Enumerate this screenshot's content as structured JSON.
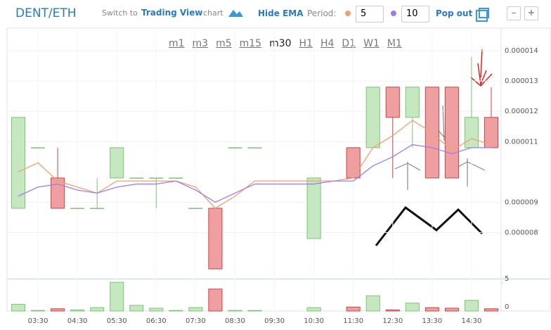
{
  "header": {
    "symbol": "DENT/ETH",
    "switch_text": "Switch to",
    "switch_link": "Trading View",
    "switch_suffix": "chart",
    "hide_ema": "Hide EMA",
    "period_label": "Period:",
    "period_1": "5",
    "period_2": "10",
    "pop_out": "Pop out",
    "zoom_out": "–",
    "zoom_in": "+"
  },
  "timeframes": {
    "items": [
      "m1",
      "m3",
      "m5",
      "m15",
      "m30",
      "H1",
      "H4",
      "D1",
      "W1",
      "M1"
    ],
    "selected": 4
  },
  "chart_data": {
    "type": "candlestick",
    "categories": [
      null,
      "03:30",
      null,
      "04:30",
      null,
      "05:30",
      null,
      "06:30",
      null,
      "07:30",
      null,
      "08:30",
      null,
      "09:30",
      null,
      "10:30",
      null,
      "11:30",
      null,
      "12:30",
      null,
      "13:30",
      null,
      "14:30",
      null
    ],
    "open": [
      8.8e-06,
      1.08e-05,
      9.8e-06,
      8.8e-06,
      8.8e-06,
      9.8e-06,
      9.8e-06,
      9.8e-06,
      9.8e-06,
      8.8e-06,
      8.8e-06,
      1.08e-05,
      1.08e-05,
      null,
      null,
      7.8e-06,
      null,
      1.08e-05,
      1.08e-05,
      1.28e-05,
      1.18e-05,
      1.28e-05,
      1.28e-05,
      1.08e-05,
      1.18e-05
    ],
    "high": [
      1.18e-05,
      1.08e-05,
      1.08e-05,
      8.8e-06,
      9.8e-06,
      1.08e-05,
      9.8e-06,
      9.8e-06,
      9.8e-06,
      8.8e-06,
      8.8e-06,
      1.08e-05,
      1.08e-05,
      null,
      null,
      9.8e-06,
      null,
      1.08e-05,
      1.28e-05,
      1.28e-05,
      1.28e-05,
      1.28e-05,
      1.28e-05,
      1.38e-05,
      1.28e-05
    ],
    "low": [
      8.8e-06,
      1.08e-05,
      8.8e-06,
      8.8e-06,
      8.8e-06,
      9.8e-06,
      9.8e-06,
      8.8e-06,
      9.8e-06,
      8.8e-06,
      6.8e-06,
      1.08e-05,
      1.08e-05,
      null,
      null,
      7.8e-06,
      null,
      9.8e-06,
      1.08e-05,
      9.8e-06,
      1.08e-05,
      9.8e-06,
      9.8e-06,
      1.08e-05,
      1.08e-05
    ],
    "close": [
      1.18e-05,
      1.08e-05,
      8.8e-06,
      8.8e-06,
      8.8e-06,
      1.08e-05,
      9.8e-06,
      9.8e-06,
      9.8e-06,
      8.8e-06,
      6.8e-06,
      1.08e-05,
      1.08e-05,
      null,
      null,
      9.8e-06,
      null,
      9.8e-06,
      1.28e-05,
      1.18e-05,
      1.28e-05,
      9.8e-06,
      9.8e-06,
      1.18e-05,
      1.08e-05
    ],
    "up_color": "#c6e8c1",
    "down_color": "#ef9f9f",
    "ylim": [
      6.5e-06,
      1.47e-05
    ],
    "yticks": [
      8e-06,
      9e-06,
      1.1e-05,
      1.2e-05,
      1.3e-05,
      1.4e-05
    ],
    "grid": true,
    "ema": [
      {
        "color": "#f0a070",
        "values": [
          1e-05,
          1.03e-05,
          9.7e-06,
          9.5e-06,
          9.3e-06,
          9.7e-06,
          9.7e-06,
          9.7e-06,
          9.7e-06,
          9.5e-06,
          8.8e-06,
          9.2e-06,
          9.7e-06,
          9.7e-06,
          9.7e-06,
          9.7e-06,
          9.7e-06,
          9.8e-06,
          1.08e-05,
          1.12e-05,
          1.17e-05,
          1.13e-05,
          1.07e-05,
          1.11e-05,
          1.09e-05
        ]
      },
      {
        "color": "#9d7cf0",
        "values": [
          9.2e-06,
          9.5e-06,
          9.6e-06,
          9.4e-06,
          9.3e-06,
          9.5e-06,
          9.6e-06,
          9.6e-06,
          9.7e-06,
          9.4e-06,
          9e-06,
          9.3e-06,
          9.6e-06,
          9.6e-06,
          9.6e-06,
          9.6e-06,
          9.7e-06,
          9.7e-06,
          1.02e-05,
          1.05e-05,
          1.09e-05,
          1.08e-05,
          1.06e-05,
          1.08e-05,
          1.08e-05
        ]
      }
    ],
    "volume": {
      "values": [
        1.2,
        0.1,
        0.4,
        0.2,
        0.6,
        5.1,
        1,
        0.5,
        0.1,
        0.6,
        3.9,
        0.1,
        0.1,
        null,
        null,
        0.6,
        null,
        0.7,
        2.7,
        0.2,
        1.4,
        0.6,
        0.5,
        1.9,
        0.4
      ],
      "ylim": [
        0,
        5.5
      ],
      "yticks": [
        0,
        5
      ]
    }
  }
}
